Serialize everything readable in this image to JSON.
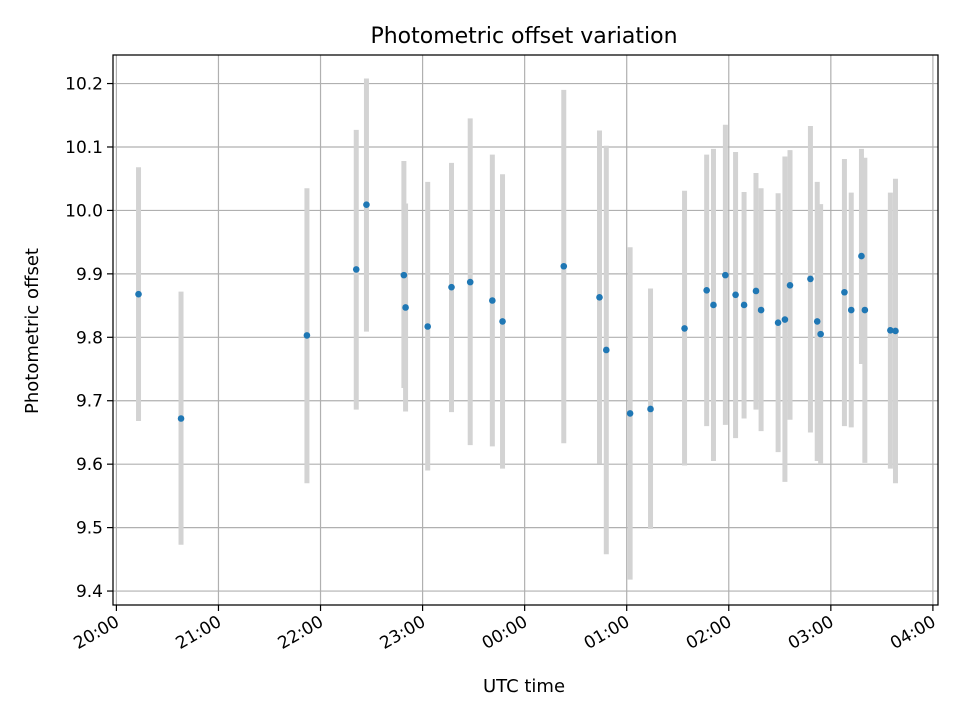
{
  "chart_data": {
    "type": "scatter",
    "title": "Photometric offset variation",
    "xlabel": "UTC time",
    "ylabel": "Photometric offset",
    "x_axis": {
      "kind": "time",
      "domain_min": "2000-01-01T19:58",
      "domain_max": "2000-01-02T04:03",
      "ticks": [
        {
          "t": "2000-01-01T20:00",
          "label": "20:00"
        },
        {
          "t": "2000-01-01T21:00",
          "label": "21:00"
        },
        {
          "t": "2000-01-01T22:00",
          "label": "22:00"
        },
        {
          "t": "2000-01-01T23:00",
          "label": "23:00"
        },
        {
          "t": "2000-01-02T00:00",
          "label": "00:00"
        },
        {
          "t": "2000-01-02T01:00",
          "label": "01:00"
        },
        {
          "t": "2000-01-02T02:00",
          "label": "02:00"
        },
        {
          "t": "2000-01-02T03:00",
          "label": "03:00"
        },
        {
          "t": "2000-01-02T04:00",
          "label": "04:00"
        }
      ]
    },
    "ylim": [
      9.378,
      10.245
    ],
    "yticks": [
      9.4,
      9.5,
      9.6,
      9.7,
      9.8,
      9.9,
      10.0,
      10.1,
      10.2
    ],
    "ytick_labels": [
      "9.4",
      "9.5",
      "9.6",
      "9.7",
      "9.8",
      "9.9",
      "10.0",
      "10.1",
      "10.2"
    ],
    "grid": true,
    "series": [
      {
        "color": "#1f77b4",
        "errorbar_color": "#d3d3d3",
        "points": [
          {
            "t": "2000-01-01T20:13",
            "y": 9.868,
            "lo": 9.668,
            "hi": 10.068
          },
          {
            "t": "2000-01-01T20:38",
            "y": 9.672,
            "lo": 9.473,
            "hi": 9.872
          },
          {
            "t": "2000-01-01T21:52",
            "y": 9.803,
            "lo": 9.57,
            "hi": 10.035
          },
          {
            "t": "2000-01-01T22:21",
            "y": 9.907,
            "lo": 9.686,
            "hi": 10.127
          },
          {
            "t": "2000-01-01T22:27",
            "y": 10.009,
            "lo": 9.809,
            "hi": 10.208
          },
          {
            "t": "2000-01-01T22:49",
            "y": 9.898,
            "lo": 9.72,
            "hi": 10.078
          },
          {
            "t": "2000-01-01T22:50",
            "y": 9.847,
            "lo": 9.683,
            "hi": 10.011
          },
          {
            "t": "2000-01-01T23:03",
            "y": 9.817,
            "lo": 9.59,
            "hi": 10.045
          },
          {
            "t": "2000-01-01T23:17",
            "y": 9.879,
            "lo": 9.682,
            "hi": 10.075
          },
          {
            "t": "2000-01-01T23:28",
            "y": 9.887,
            "lo": 9.63,
            "hi": 10.145
          },
          {
            "t": "2000-01-01T23:41",
            "y": 9.858,
            "lo": 9.628,
            "hi": 10.088
          },
          {
            "t": "2000-01-01T23:47",
            "y": 9.825,
            "lo": 9.593,
            "hi": 10.057
          },
          {
            "t": "2000-01-02T00:23",
            "y": 9.912,
            "lo": 9.633,
            "hi": 10.19
          },
          {
            "t": "2000-01-02T00:44",
            "y": 9.863,
            "lo": 9.601,
            "hi": 10.126
          },
          {
            "t": "2000-01-02T00:48",
            "y": 9.78,
            "lo": 9.458,
            "hi": 10.102
          },
          {
            "t": "2000-01-02T01:02",
            "y": 9.68,
            "lo": 9.418,
            "hi": 9.942
          },
          {
            "t": "2000-01-02T01:14",
            "y": 9.687,
            "lo": 9.498,
            "hi": 9.877
          },
          {
            "t": "2000-01-02T01:34",
            "y": 9.814,
            "lo": 9.598,
            "hi": 10.031
          },
          {
            "t": "2000-01-02T01:47",
            "y": 9.874,
            "lo": 9.66,
            "hi": 10.088
          },
          {
            "t": "2000-01-02T01:51",
            "y": 9.851,
            "lo": 9.605,
            "hi": 10.097
          },
          {
            "t": "2000-01-02T01:58",
            "y": 9.898,
            "lo": 9.662,
            "hi": 10.135
          },
          {
            "t": "2000-01-02T02:04",
            "y": 9.867,
            "lo": 9.641,
            "hi": 10.092
          },
          {
            "t": "2000-01-02T02:09",
            "y": 9.851,
            "lo": 9.672,
            "hi": 10.029
          },
          {
            "t": "2000-01-02T02:16",
            "y": 9.873,
            "lo": 9.686,
            "hi": 10.059
          },
          {
            "t": "2000-01-02T02:19",
            "y": 9.843,
            "lo": 9.652,
            "hi": 10.035
          },
          {
            "t": "2000-01-02T02:29",
            "y": 9.823,
            "lo": 9.619,
            "hi": 10.027
          },
          {
            "t": "2000-01-02T02:33",
            "y": 9.828,
            "lo": 9.572,
            "hi": 10.085
          },
          {
            "t": "2000-01-02T02:36",
            "y": 9.882,
            "lo": 9.67,
            "hi": 10.095
          },
          {
            "t": "2000-01-02T02:48",
            "y": 9.892,
            "lo": 9.65,
            "hi": 10.133
          },
          {
            "t": "2000-01-02T02:52",
            "y": 9.825,
            "lo": 9.605,
            "hi": 10.045
          },
          {
            "t": "2000-01-02T02:54",
            "y": 9.805,
            "lo": 9.6,
            "hi": 10.01
          },
          {
            "t": "2000-01-02T03:08",
            "y": 9.871,
            "lo": 9.66,
            "hi": 10.081
          },
          {
            "t": "2000-01-02T03:12",
            "y": 9.843,
            "lo": 9.658,
            "hi": 10.028
          },
          {
            "t": "2000-01-02T03:18",
            "y": 9.928,
            "lo": 9.758,
            "hi": 10.097
          },
          {
            "t": "2000-01-02T03:20",
            "y": 9.843,
            "lo": 9.602,
            "hi": 10.083
          },
          {
            "t": "2000-01-02T03:35",
            "y": 9.811,
            "lo": 9.593,
            "hi": 10.028
          },
          {
            "t": "2000-01-02T03:38",
            "y": 9.81,
            "lo": 9.57,
            "hi": 10.05
          }
        ]
      }
    ]
  }
}
